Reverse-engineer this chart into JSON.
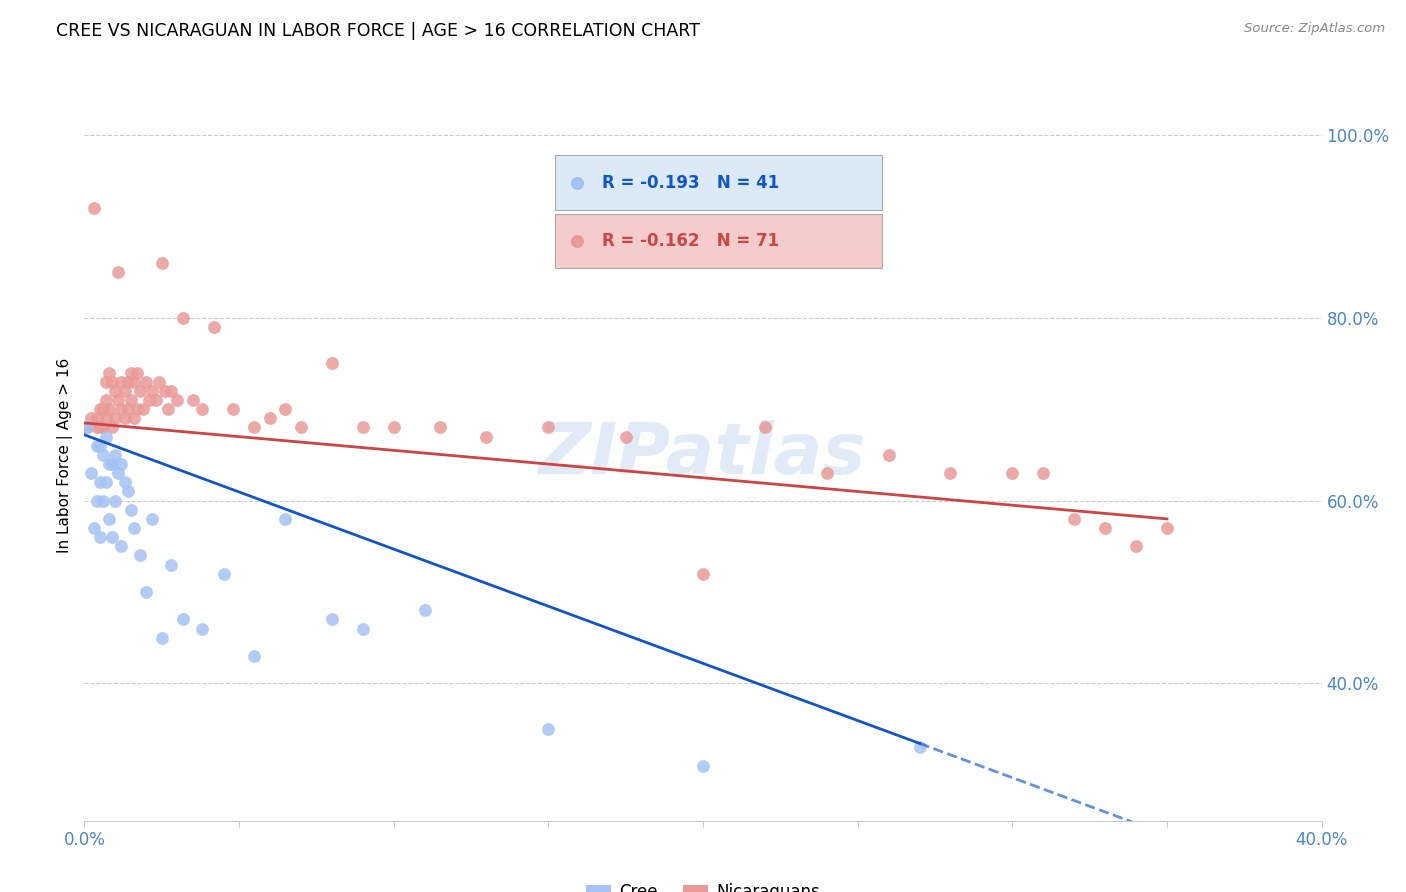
{
  "title": "CREE VS NICARAGUAN IN LABOR FORCE | AGE > 16 CORRELATION CHART",
  "source": "Source: ZipAtlas.com",
  "ylabel": "In Labor Force | Age > 16",
  "xlim": [
    0.0,
    0.4
  ],
  "ylim": [
    0.25,
    1.05
  ],
  "ytick_right_labels": [
    "100.0%",
    "80.0%",
    "60.0%",
    "40.0%"
  ],
  "ytick_right_vals": [
    1.0,
    0.8,
    0.6,
    0.4
  ],
  "cree_color": "#a4c2f4",
  "nicaraguan_color": "#ea9999",
  "cree_line_color": "#1155cc",
  "nicaraguan_line_color": "#cc4444",
  "R_cree": -0.193,
  "N_cree": 41,
  "R_nicaraguan": -0.162,
  "N_nicaraguan": 71,
  "cree_x": [
    0.001,
    0.002,
    0.003,
    0.004,
    0.004,
    0.005,
    0.005,
    0.005,
    0.006,
    0.006,
    0.007,
    0.007,
    0.008,
    0.008,
    0.009,
    0.009,
    0.01,
    0.01,
    0.011,
    0.012,
    0.012,
    0.013,
    0.014,
    0.015,
    0.016,
    0.018,
    0.02,
    0.022,
    0.025,
    0.028,
    0.032,
    0.038,
    0.045,
    0.055,
    0.065,
    0.08,
    0.09,
    0.11,
    0.15,
    0.2,
    0.27
  ],
  "cree_y": [
    0.68,
    0.63,
    0.57,
    0.66,
    0.6,
    0.66,
    0.62,
    0.56,
    0.65,
    0.6,
    0.67,
    0.62,
    0.64,
    0.58,
    0.64,
    0.56,
    0.65,
    0.6,
    0.63,
    0.64,
    0.55,
    0.62,
    0.61,
    0.59,
    0.57,
    0.54,
    0.5,
    0.58,
    0.45,
    0.53,
    0.47,
    0.46,
    0.52,
    0.43,
    0.58,
    0.47,
    0.46,
    0.48,
    0.35,
    0.31,
    0.33
  ],
  "nicaraguan_x": [
    0.001,
    0.002,
    0.003,
    0.004,
    0.004,
    0.005,
    0.005,
    0.006,
    0.006,
    0.007,
    0.007,
    0.007,
    0.008,
    0.008,
    0.009,
    0.009,
    0.01,
    0.01,
    0.011,
    0.011,
    0.012,
    0.012,
    0.013,
    0.013,
    0.014,
    0.014,
    0.015,
    0.015,
    0.016,
    0.016,
    0.017,
    0.017,
    0.018,
    0.019,
    0.02,
    0.021,
    0.022,
    0.023,
    0.024,
    0.025,
    0.026,
    0.027,
    0.028,
    0.03,
    0.032,
    0.035,
    0.038,
    0.042,
    0.048,
    0.055,
    0.06,
    0.065,
    0.07,
    0.08,
    0.09,
    0.1,
    0.115,
    0.13,
    0.15,
    0.175,
    0.2,
    0.22,
    0.24,
    0.26,
    0.28,
    0.3,
    0.31,
    0.32,
    0.33,
    0.34,
    0.35
  ],
  "nicaraguan_y": [
    0.68,
    0.69,
    0.92,
    0.69,
    0.68,
    0.7,
    0.68,
    0.7,
    0.68,
    0.73,
    0.71,
    0.69,
    0.74,
    0.7,
    0.73,
    0.68,
    0.72,
    0.69,
    0.85,
    0.71,
    0.73,
    0.7,
    0.72,
    0.69,
    0.73,
    0.7,
    0.74,
    0.71,
    0.73,
    0.69,
    0.74,
    0.7,
    0.72,
    0.7,
    0.73,
    0.71,
    0.72,
    0.71,
    0.73,
    0.86,
    0.72,
    0.7,
    0.72,
    0.71,
    0.8,
    0.71,
    0.7,
    0.79,
    0.7,
    0.68,
    0.69,
    0.7,
    0.68,
    0.75,
    0.68,
    0.68,
    0.68,
    0.67,
    0.68,
    0.67,
    0.52,
    0.68,
    0.63,
    0.65,
    0.63,
    0.63,
    0.63,
    0.58,
    0.57,
    0.55,
    0.57
  ],
  "background_color": "#ffffff",
  "grid_color": "#cccccc",
  "axis_color": "#4a86c8",
  "marker_size": 85,
  "cree_line_start_x": 0.0,
  "cree_line_end_solid_x": 0.27,
  "cree_line_end_dash_x": 0.4,
  "nicar_line_start_x": 0.0,
  "nicar_line_end_x": 0.35,
  "cree_intercept": 0.672,
  "cree_slope": -1.25,
  "nicar_intercept": 0.685,
  "nicar_slope": -0.3
}
